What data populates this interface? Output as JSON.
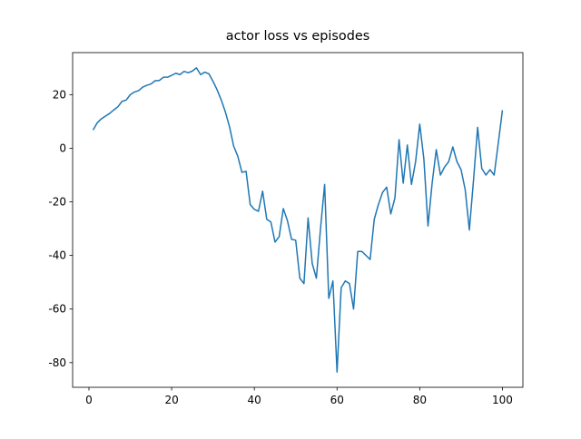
{
  "chart_data": {
    "type": "line",
    "title": "actor loss vs episodes",
    "x": [
      1,
      2,
      3,
      4,
      5,
      6,
      7,
      8,
      9,
      10,
      11,
      12,
      13,
      14,
      15,
      16,
      17,
      18,
      19,
      20,
      21,
      22,
      23,
      24,
      25,
      26,
      27,
      28,
      29,
      30,
      31,
      32,
      33,
      34,
      35,
      36,
      37,
      38,
      39,
      40,
      41,
      42,
      43,
      44,
      45,
      46,
      47,
      48,
      49,
      50,
      51,
      52,
      53,
      54,
      55,
      56,
      57,
      58,
      59,
      60,
      61,
      62,
      63,
      64,
      65,
      66,
      67,
      68,
      69,
      70,
      71,
      72,
      73,
      74,
      75,
      76,
      77,
      78,
      79,
      80,
      81,
      82,
      83,
      84,
      85,
      86,
      87,
      88,
      89,
      90,
      91,
      92,
      93,
      94,
      95,
      96,
      97,
      98,
      99,
      100
    ],
    "series": [
      {
        "color": "#1f77b4",
        "values": [
          6.8,
          9.5,
          11,
          12,
          13,
          14.3,
          15.5,
          17.5,
          18,
          20,
          21,
          21.5,
          22.8,
          23.5,
          24,
          25.2,
          25.3,
          26.5,
          26.5,
          27.2,
          28,
          27.5,
          28.7,
          28.2,
          28.8,
          30,
          27.5,
          28.4,
          27.8,
          25,
          21.8,
          18,
          13.5,
          8,
          0.8,
          -3,
          -9,
          -8.6,
          -21,
          -22.8,
          -23.5,
          -16,
          -26.5,
          -27.5,
          -35,
          -33,
          -22.5,
          -27,
          -34,
          -34.3,
          -48.5,
          -50.5,
          -26,
          -43,
          -48.5,
          -30,
          -13.5,
          -56,
          -49.5,
          -83.5,
          -52,
          -49.5,
          -50.5,
          -60,
          -38.5,
          -38.5,
          -40,
          -41.5,
          -26.5,
          -21,
          -16.5,
          -14.5,
          -24.5,
          -18.5,
          3.2,
          -13,
          1.2,
          -13.5,
          -5,
          9,
          -4,
          -29,
          -13,
          -0.5,
          -10,
          -7,
          -5,
          0.5,
          -5,
          -8,
          -15.5,
          -30.5,
          -12,
          7.8,
          -7.5,
          -10,
          -8,
          -10,
          2,
          14.2
        ]
      }
    ],
    "xlim": [
      -3.95,
      104.95
    ],
    "xticks": [
      0,
      20,
      40,
      60,
      80,
      100
    ],
    "ylim": [
      -89.2,
      35.7
    ],
    "yticks": [
      -80,
      -60,
      -40,
      -20,
      0,
      20
    ]
  }
}
